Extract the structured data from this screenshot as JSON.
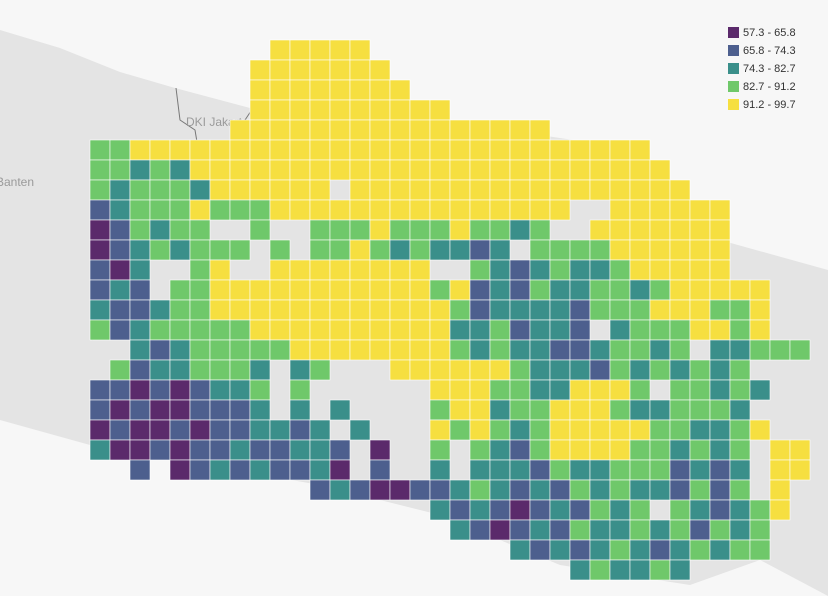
{
  "map": {
    "places": [
      {
        "label": "DKI Jakarta"
      },
      {
        "label": "Banten"
      }
    ],
    "legend": {
      "items": [
        {
          "label": "57.3 - 65.8",
          "color": "#5b2a6b"
        },
        {
          "label": "65.8 - 74.3",
          "color": "#4d5f8e"
        },
        {
          "label": "74.3 - 82.7",
          "color": "#3a8f8a"
        },
        {
          "label": "82.7 - 91.2",
          "color": "#6fc86a"
        },
        {
          "label": "91.2 - 99.7",
          "color": "#f6df40"
        }
      ]
    },
    "grid": [
      ".........44444.....................",
      "........4444444....................",
      "........44444444...................",
      "........4444444444.................",
      ".......4444444444444444............",
      "3344444444444444444444444444.......",
      "33232444444444444444444444444......",
      "323332444444.44444444444444444.....",
      "123334333444444444444444..444444....",
      "013233..3..333433343323..4444444...",
      "01232333.3.3343232212.3333444444...",
      "102..34..44444444..3212322344444...",
      "121.334444444444434121322332344444",
      "2112334444444444443122221333444334.",
      "3123333344444444442231221.23334434.",
      "..2123333344444444323221123323 22333.",
      ".31223332 23...444444322213232323..",
      "110101223.3......44433224443 33232..",
      "101001112.2.2....3442334443223332..",
      "010010112212.2...43432344444332234.",
      "2001011211221.0..3.32134444332323 44",
      "..1.012121120.1..2.22213223331212 44",
      "...........1210011232121323221313 4.",
      ".................21210121323 321234.",
      "..................2101213223231323.",
      ".....................2121232123233.",
      "........................232232....."
    ]
  }
}
